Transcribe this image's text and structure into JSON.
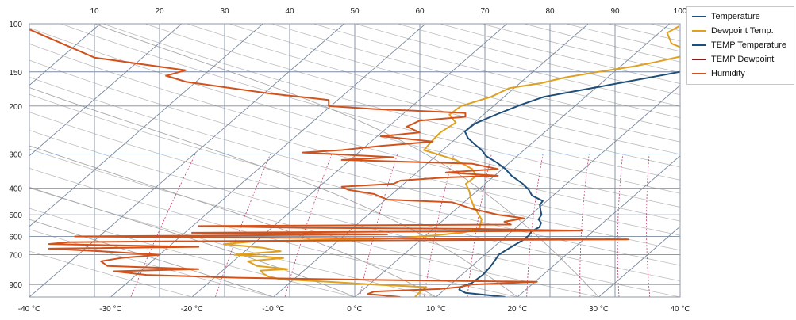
{
  "chart_data": {
    "type": "line",
    "chart_kind": "skew-T log-P diagram",
    "x_bottom_ticks": [
      "-40 °C",
      "-30 °C",
      "-20 °C",
      "-10 °C",
      "0 °C",
      "10 °C",
      "20 °C",
      "30 °C",
      "40 °C"
    ],
    "x_top_ticks": [
      "10",
      "20",
      "30",
      "40",
      "50",
      "60",
      "70",
      "80",
      "90",
      "100"
    ],
    "y_ticks": [
      "100",
      "150",
      "200",
      "300",
      "400",
      "500",
      "600",
      "700",
      "900"
    ],
    "y_range": [
      1000,
      100
    ],
    "y_scale": "log",
    "x_bottom_range": [
      -40,
      40
    ],
    "x_top_range": [
      0,
      100
    ],
    "grid": true,
    "legend_position": "right",
    "legend": [
      "Temperature",
      "Dewpoint Temp.",
      "TEMP Temperature",
      "TEMP Dewpoint",
      "Humidity"
    ],
    "colors": {
      "temperature": "#1f4e79",
      "dewpoint": "#e0a020",
      "temp_temperature": "#1f4e79",
      "temp_dewpoint": "#8b1a1a",
      "humidity": "#d2521c",
      "isotherm": "#7a8aa0",
      "isobar": "#7a8aa0",
      "adiabat": "#bdbdbd",
      "mixing_ratio": "#c43a6a"
    },
    "series": [
      {
        "name": "Temperature",
        "axis": "bottom",
        "points": [
          [
            18.5,
            1000
          ],
          [
            13,
            965
          ],
          [
            11.8,
            940
          ],
          [
            11.6,
            920
          ],
          [
            12,
            905
          ],
          [
            12.4,
            890
          ],
          [
            12.6,
            830
          ],
          [
            12.4,
            780
          ],
          [
            12.1,
            740
          ],
          [
            11.7,
            700
          ],
          [
            12.1,
            660
          ],
          [
            12.6,
            620
          ],
          [
            12.7,
            595
          ],
          [
            12.4,
            575
          ],
          [
            12.8,
            555
          ],
          [
            12.4,
            535
          ],
          [
            11.6,
            520
          ],
          [
            11.3,
            500
          ],
          [
            10.5,
            480
          ],
          [
            9.7,
            460
          ],
          [
            9.5,
            445
          ],
          [
            7.4,
            425
          ],
          [
            6.2,
            405
          ],
          [
            4.6,
            385
          ],
          [
            2.1,
            360
          ],
          [
            0.4,
            340
          ],
          [
            -1.6,
            322
          ],
          [
            -3.8,
            305
          ],
          [
            -5.2,
            290
          ],
          [
            -6.9,
            276
          ],
          [
            -8.6,
            262
          ],
          [
            -9.9,
            248
          ],
          [
            -9.8,
            232
          ],
          [
            -8.4,
            214
          ],
          [
            -6.8,
            198
          ],
          [
            -5.1,
            185
          ],
          [
            -2.6,
            178
          ],
          [
            0.3,
            170
          ],
          [
            4.1,
            160
          ],
          [
            6.9,
            153
          ],
          [
            9.6,
            146
          ],
          [
            11.6,
            138
          ],
          [
            14.4,
            131
          ],
          [
            15.5,
            125
          ],
          [
            15.1,
            119
          ],
          [
            14.2,
            113
          ],
          [
            14.5,
            108
          ],
          [
            16.8,
            103
          ]
        ]
      },
      {
        "name": "Dewpoint Temp.",
        "axis": "bottom",
        "points": [
          [
            7.4,
            1000
          ],
          [
            7.3,
            960
          ],
          [
            7.4,
            920
          ],
          [
            0.6,
            900
          ],
          [
            -5.4,
            880
          ],
          [
            -11.8,
            860
          ],
          [
            -13.6,
            840
          ],
          [
            -14.6,
            820
          ],
          [
            -15.3,
            800
          ],
          [
            -12.2,
            790
          ],
          [
            -16.4,
            770
          ],
          [
            -18.2,
            740
          ],
          [
            -14.3,
            720
          ],
          [
            -20.8,
            700
          ],
          [
            -15.6,
            680
          ],
          [
            -18.3,
            660
          ],
          [
            -23.6,
            640
          ],
          [
            -20,
            625
          ],
          [
            -3.6,
            610
          ],
          [
            1,
            595
          ],
          [
            4.3,
            580
          ],
          [
            5.6,
            560
          ],
          [
            5.1,
            540
          ],
          [
            4.6,
            520
          ],
          [
            3.6,
            500
          ],
          [
            2,
            470
          ],
          [
            0.5,
            440
          ],
          [
            -0.9,
            410
          ],
          [
            -2.4,
            385
          ],
          [
            -2.2,
            360
          ],
          [
            -3.7,
            340
          ],
          [
            -7,
            315
          ],
          [
            -12.3,
            290
          ],
          [
            -12.6,
            270
          ],
          [
            -12.8,
            250
          ],
          [
            -12.3,
            230
          ],
          [
            -14.2,
            215
          ],
          [
            -14,
            200
          ],
          [
            -11.6,
            185
          ],
          [
            -10.6,
            172
          ],
          [
            -7.4,
            165
          ],
          [
            -5.2,
            157
          ],
          [
            -1.4,
            149
          ],
          [
            1.7,
            143
          ],
          [
            3.7,
            138
          ],
          [
            5.9,
            132
          ],
          [
            5.9,
            125
          ],
          [
            3,
            118
          ],
          [
            1,
            108
          ],
          [
            1.5,
            102
          ]
        ]
      },
      {
        "name": "Humidity",
        "axis": "top",
        "points": [
          [
            57,
            1000
          ],
          [
            52,
            975
          ],
          [
            53,
            955
          ],
          [
            63,
            935
          ],
          [
            66,
            920
          ],
          [
            68,
            900
          ],
          [
            78,
            880
          ],
          [
            52,
            865
          ],
          [
            32,
            850
          ],
          [
            18,
            830
          ],
          [
            13,
            805
          ],
          [
            26,
            790
          ],
          [
            12,
            770
          ],
          [
            11,
            740
          ],
          [
            14,
            720
          ],
          [
            20,
            700
          ],
          [
            11,
            680
          ],
          [
            3,
            665
          ],
          [
            26,
            655
          ],
          [
            3,
            640
          ],
          [
            6,
            630
          ],
          [
            22,
            625
          ],
          [
            92,
            615
          ],
          [
            40,
            607
          ],
          [
            7,
            600
          ],
          [
            55,
            590
          ],
          [
            25,
            582
          ],
          [
            85,
            572
          ],
          [
            68,
            563
          ],
          [
            42,
            558
          ],
          [
            26,
            550
          ],
          [
            74,
            543
          ],
          [
            73,
            530
          ],
          [
            76,
            515
          ],
          [
            72,
            500
          ],
          [
            68,
            475
          ],
          [
            65,
            450
          ],
          [
            55,
            440
          ],
          [
            53,
            420
          ],
          [
            49,
            405
          ],
          [
            48,
            395
          ],
          [
            56,
            385
          ],
          [
            57,
            375
          ],
          [
            64,
            365
          ],
          [
            72,
            360
          ],
          [
            64,
            350
          ],
          [
            72,
            340
          ],
          [
            68,
            325
          ],
          [
            48,
            315
          ],
          [
            56,
            308
          ],
          [
            42,
            296
          ],
          [
            48,
            290
          ],
          [
            54,
            280
          ],
          [
            62,
            270
          ],
          [
            54,
            258
          ],
          [
            60,
            250
          ],
          [
            58,
            238
          ],
          [
            60,
            226
          ],
          [
            67,
            219
          ],
          [
            67,
            212
          ],
          [
            53,
            205
          ],
          [
            46,
            200
          ],
          [
            46,
            190
          ],
          [
            37,
            180
          ],
          [
            31,
            172
          ],
          [
            24,
            163
          ],
          [
            21,
            155
          ],
          [
            24,
            148
          ],
          [
            10,
            133
          ],
          [
            -2,
            100
          ]
        ]
      }
    ]
  }
}
